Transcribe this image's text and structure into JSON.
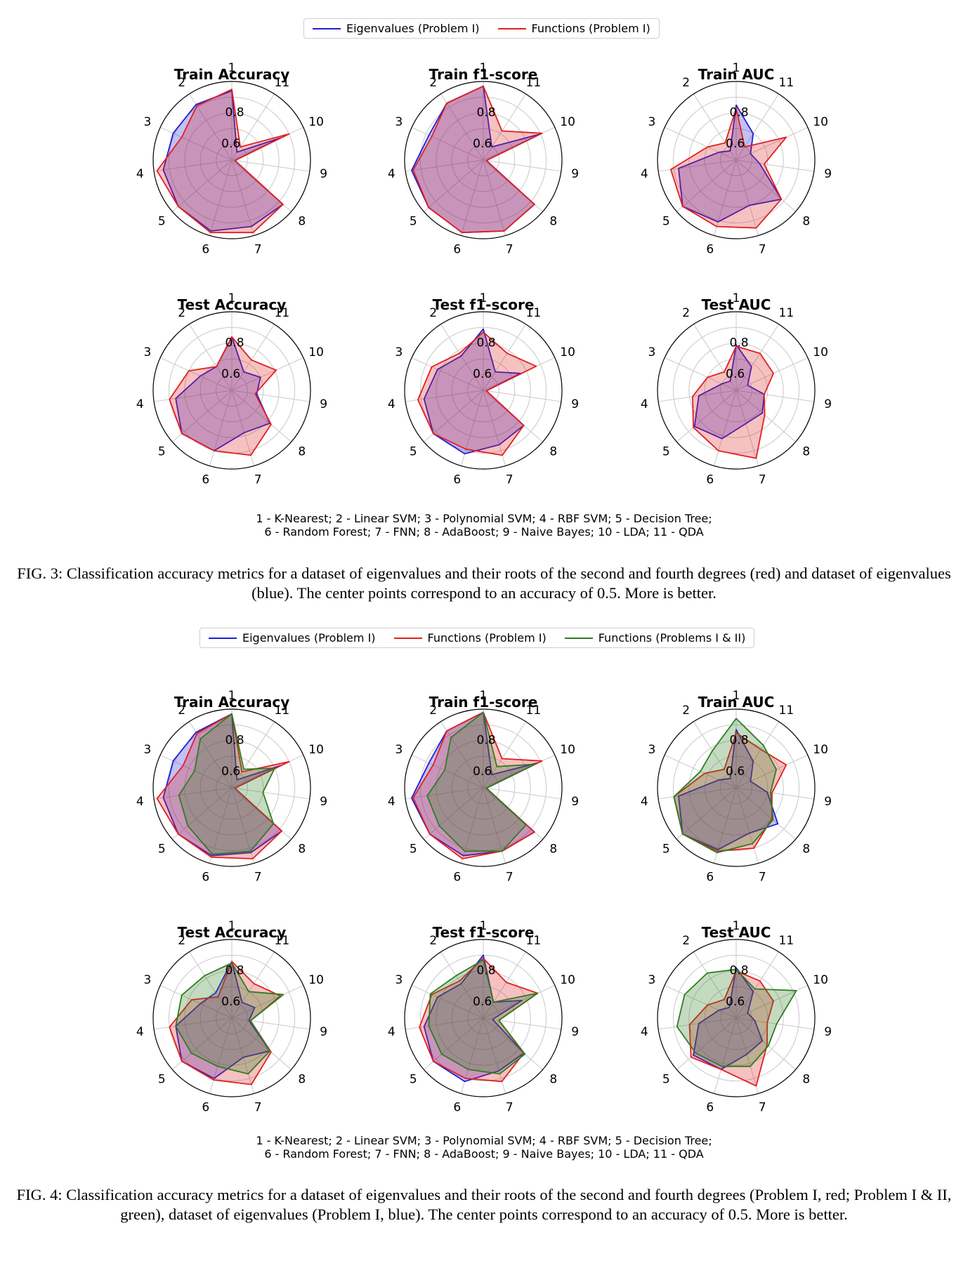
{
  "figures": [
    {
      "legend": [
        {
          "label": "Eigenvalues (Problem I)",
          "color": "#1f1fd6"
        },
        {
          "label": "Functions (Problem I)",
          "color": "#e02020"
        }
      ],
      "abbreviations": [
        "1 - K-Nearest; 2 - Linear SVM; 3 - Polynomial SVM; 4 - RBF SVM; 5 - Decision Tree;",
        "6 - Random Forest; 7 - FNN; 8 - AdaBoost; 9 - Naive Bayes; 10 - LDA; 11 - QDA"
      ],
      "caption": "FIG. 3: Classification accuracy metrics for a dataset of eigenvalues and their roots of the second and fourth degrees (red) and dataset of eigenvalues (blue). The center points correspond to an accuracy of 0.5. More is better."
    },
    {
      "legend": [
        {
          "label": "Eigenvalues (Problem I)",
          "color": "#1f1fd6"
        },
        {
          "label": "Functions (Problem I)",
          "color": "#e02020"
        },
        {
          "label": "Functions (Problems I & II)",
          "color": "#2e7d22"
        }
      ],
      "abbreviations": [
        "1 - K-Nearest; 2 - Linear SVM; 3 - Polynomial SVM; 4 - RBF SVM; 5 - Decision Tree;",
        "6 - Random Forest; 7 - FNN; 8 - AdaBoost; 9 - Naive Bayes; 10 - LDA; 11 - QDA"
      ],
      "caption": "FIG. 4: Classification accuracy metrics for a dataset of eigenvalues and their roots of the second and fourth degrees (Problem I, red; Problem I & II, green), dataset of eigenvalues (Problem I, blue). The center points correspond to an accuracy of 0.5. More is better."
    }
  ],
  "chart_data": [
    {
      "type": "radar",
      "figure": "FIG. 3",
      "title": "Train Accuracy",
      "categories": [
        "1",
        "2",
        "3",
        "4",
        "5",
        "6",
        "7",
        "8",
        "9",
        "10",
        "11"
      ],
      "rlim": [
        0.5,
        1.0
      ],
      "radial_ticks": [
        "0.6",
        "0.8"
      ],
      "series": [
        {
          "name": "Eigenvalues (Problem I)",
          "color": "#1f1fd6",
          "values": [
            0.94,
            0.92,
            0.91,
            0.94,
            0.95,
            0.97,
            0.94,
            0.93,
            0.52,
            0.84,
            0.56
          ]
        },
        {
          "name": "Functions (Problem I)",
          "color": "#e02020",
          "values": [
            0.95,
            0.91,
            0.85,
            0.98,
            0.95,
            0.98,
            0.98,
            0.93,
            0.52,
            0.9,
            0.6
          ]
        }
      ]
    },
    {
      "type": "radar",
      "figure": "FIG. 3",
      "title": "Train f1-score",
      "categories": [
        "1",
        "2",
        "3",
        "4",
        "5",
        "6",
        "7",
        "8",
        "9",
        "10",
        "11"
      ],
      "rlim": [
        0.5,
        1.0
      ],
      "radial_ticks": [
        "0.6",
        "0.8"
      ],
      "series": [
        {
          "name": "Eigenvalues (Problem I)",
          "color": "#1f1fd6",
          "values": [
            0.97,
            0.93,
            0.88,
            0.96,
            0.96,
            0.98,
            0.97,
            0.93,
            0.52,
            0.9,
            0.6
          ]
        },
        {
          "name": "Functions (Problem I)",
          "color": "#e02020",
          "values": [
            0.97,
            0.93,
            0.86,
            0.95,
            0.96,
            0.98,
            0.97,
            0.93,
            0.52,
            0.91,
            0.72
          ]
        }
      ]
    },
    {
      "type": "radar",
      "figure": "FIG. 3",
      "title": "Train AUC",
      "categories": [
        "1",
        "2",
        "3",
        "4",
        "5",
        "6",
        "7",
        "8",
        "9",
        "10",
        "11"
      ],
      "rlim": [
        0.5,
        1.0
      ],
      "radial_ticks": [
        "0.6",
        "0.8"
      ],
      "series": [
        {
          "name": "Eigenvalues (Problem I)",
          "color": "#1f1fd6",
          "values": [
            0.85,
            0.57,
            0.62,
            0.87,
            0.95,
            0.91,
            0.8,
            0.88,
            0.65,
            0.6,
            0.7
          ]
        },
        {
          "name": "Functions (Problem I)",
          "color": "#e02020",
          "values": [
            0.83,
            0.63,
            0.7,
            0.92,
            0.95,
            0.94,
            0.95,
            0.88,
            0.68,
            0.85,
            0.6
          ]
        }
      ]
    },
    {
      "type": "radar",
      "figure": "FIG. 3",
      "title": "Test Accuracy",
      "categories": [
        "1",
        "2",
        "3",
        "4",
        "5",
        "6",
        "7",
        "8",
        "9",
        "10",
        "11"
      ],
      "rlim": [
        0.5,
        1.0
      ],
      "radial_ticks": [
        "0.6",
        "0.8"
      ],
      "series": [
        {
          "name": "Eigenvalues (Problem I)",
          "color": "#1f1fd6",
          "values": [
            0.84,
            0.68,
            0.72,
            0.86,
            0.92,
            0.9,
            0.78,
            0.82,
            0.66,
            0.7,
            0.64
          ]
        },
        {
          "name": "Functions (Problem I)",
          "color": "#e02020",
          "values": [
            0.84,
            0.68,
            0.8,
            0.9,
            0.92,
            0.9,
            0.93,
            0.83,
            0.65,
            0.81,
            0.73
          ]
        }
      ]
    },
    {
      "type": "radar",
      "figure": "FIG. 3",
      "title": "Test f1-score",
      "categories": [
        "1",
        "2",
        "3",
        "4",
        "5",
        "6",
        "7",
        "8",
        "9",
        "10",
        "11"
      ],
      "rlim": [
        0.5,
        1.0
      ],
      "radial_ticks": [
        "0.6",
        "0.8"
      ],
      "series": [
        {
          "name": "Eigenvalues (Problem I)",
          "color": "#1f1fd6",
          "values": [
            0.89,
            0.76,
            0.82,
            0.88,
            0.92,
            0.92,
            0.86,
            0.84,
            0.52,
            0.76,
            0.64
          ]
        },
        {
          "name": "Functions (Problem I)",
          "color": "#e02020",
          "values": [
            0.87,
            0.78,
            0.86,
            0.92,
            0.92,
            0.89,
            0.93,
            0.84,
            0.52,
            0.87,
            0.78
          ]
        }
      ]
    },
    {
      "type": "radar",
      "figure": "FIG. 3",
      "title": "Test AUC",
      "categories": [
        "1",
        "2",
        "3",
        "4",
        "5",
        "6",
        "7",
        "8",
        "9",
        "10",
        "11"
      ],
      "rlim": [
        0.5,
        1.0
      ],
      "radial_ticks": [
        "0.6",
        "0.8"
      ],
      "series": [
        {
          "name": "Eigenvalues (Problem I)",
          "color": "#1f1fd6",
          "values": [
            0.79,
            0.57,
            0.6,
            0.74,
            0.85,
            0.82,
            0.72,
            0.72,
            0.68,
            0.58,
            0.68
          ]
        },
        {
          "name": "Functions (Problem I)",
          "color": "#e02020",
          "values": [
            0.78,
            0.64,
            0.7,
            0.78,
            0.86,
            0.9,
            0.95,
            0.74,
            0.68,
            0.76,
            0.78
          ]
        }
      ]
    },
    {
      "type": "radar",
      "figure": "FIG. 4",
      "title": "Train Accuracy",
      "categories": [
        "1",
        "2",
        "3",
        "4",
        "5",
        "6",
        "7",
        "8",
        "9",
        "10",
        "11"
      ],
      "rlim": [
        0.5,
        1.0
      ],
      "radial_ticks": [
        "0.6",
        "0.8"
      ],
      "series": [
        {
          "name": "Eigenvalues (Problem I)",
          "color": "#1f1fd6",
          "values": [
            0.97,
            0.92,
            0.91,
            0.94,
            0.95,
            0.95,
            0.93,
            0.92,
            0.52,
            0.84,
            0.56
          ]
        },
        {
          "name": "Functions (Problem I)",
          "color": "#e02020",
          "values": [
            0.97,
            0.91,
            0.84,
            0.98,
            0.95,
            0.96,
            0.97,
            0.92,
            0.52,
            0.9,
            0.62
          ]
        },
        {
          "name": "Functions (Problems I & II)",
          "color": "#2e7d22",
          "values": [
            0.97,
            0.87,
            0.76,
            0.84,
            0.87,
            0.94,
            0.92,
            0.85,
            0.7,
            0.8,
            0.64
          ]
        }
      ]
    },
    {
      "type": "radar",
      "figure": "FIG. 4",
      "title": "Train f1-score",
      "categories": [
        "1",
        "2",
        "3",
        "4",
        "5",
        "6",
        "7",
        "8",
        "9",
        "10",
        "11"
      ],
      "rlim": [
        0.5,
        1.0
      ],
      "radial_ticks": [
        "0.6",
        "0.8"
      ],
      "series": [
        {
          "name": "Eigenvalues (Problem I)",
          "color": "#1f1fd6",
          "values": [
            0.98,
            0.93,
            0.88,
            0.96,
            0.95,
            0.95,
            0.92,
            0.93,
            0.52,
            0.88,
            0.6
          ]
        },
        {
          "name": "Functions (Problem I)",
          "color": "#e02020",
          "values": [
            0.98,
            0.93,
            0.85,
            0.95,
            0.95,
            0.97,
            0.92,
            0.93,
            0.52,
            0.91,
            0.72
          ]
        },
        {
          "name": "Functions (Problems I & II)",
          "color": "#2e7d22",
          "values": [
            0.98,
            0.88,
            0.77,
            0.86,
            0.87,
            0.92,
            0.92,
            0.86,
            0.52,
            0.86,
            0.66
          ]
        }
      ]
    },
    {
      "type": "radar",
      "figure": "FIG. 4",
      "title": "Train AUC",
      "categories": [
        "1",
        "2",
        "3",
        "4",
        "5",
        "6",
        "7",
        "8",
        "9",
        "10",
        "11"
      ],
      "rlim": [
        0.5,
        1.0
      ],
      "radial_ticks": [
        "0.6",
        "0.8"
      ],
      "series": [
        {
          "name": "Eigenvalues (Problem I)",
          "color": "#1f1fd6",
          "values": [
            0.87,
            0.57,
            0.62,
            0.87,
            0.95,
            0.91,
            0.8,
            0.85,
            0.7,
            0.6,
            0.7
          ]
        },
        {
          "name": "Functions (Problem I)",
          "color": "#e02020",
          "values": [
            0.85,
            0.64,
            0.72,
            0.9,
            0.95,
            0.92,
            0.9,
            0.8,
            0.73,
            0.85,
            0.79
          ]
        },
        {
          "name": "Functions (Problems I & II)",
          "color": "#2e7d22",
          "values": [
            0.94,
            0.78,
            0.75,
            0.9,
            0.95,
            0.93,
            0.87,
            0.81,
            0.72,
            0.78,
            0.82
          ]
        }
      ]
    },
    {
      "type": "radar",
      "figure": "FIG. 4",
      "title": "Test Accuracy",
      "categories": [
        "1",
        "2",
        "3",
        "4",
        "5",
        "6",
        "7",
        "8",
        "9",
        "10",
        "11"
      ],
      "rlim": [
        0.5,
        1.0
      ],
      "radial_ticks": [
        "0.6",
        "0.8"
      ],
      "series": [
        {
          "name": "Eigenvalues (Problem I)",
          "color": "#1f1fd6",
          "values": [
            0.86,
            0.69,
            0.72,
            0.86,
            0.92,
            0.9,
            0.76,
            0.82,
            0.61,
            0.66,
            0.62
          ]
        },
        {
          "name": "Functions (Problem I)",
          "color": "#e02020",
          "values": [
            0.86,
            0.66,
            0.78,
            0.9,
            0.92,
            0.91,
            0.94,
            0.83,
            0.62,
            0.84,
            0.76
          ]
        },
        {
          "name": "Functions (Problems I & II)",
          "color": "#2e7d22",
          "values": [
            0.85,
            0.82,
            0.85,
            0.86,
            0.84,
            0.82,
            0.87,
            0.82,
            0.62,
            0.86,
            0.7
          ]
        }
      ]
    },
    {
      "type": "radar",
      "figure": "FIG. 4",
      "title": "Test f1-score",
      "categories": [
        "1",
        "2",
        "3",
        "4",
        "5",
        "6",
        "7",
        "8",
        "9",
        "10",
        "11"
      ],
      "rlim": [
        0.5,
        1.0
      ],
      "radial_ticks": [
        "0.6",
        "0.8"
      ],
      "series": [
        {
          "name": "Eigenvalues (Problem I)",
          "color": "#1f1fd6",
          "values": [
            0.9,
            0.76,
            0.82,
            0.88,
            0.92,
            0.92,
            0.85,
            0.84,
            0.56,
            0.77,
            0.62
          ]
        },
        {
          "name": "Functions (Problem I)",
          "color": "#e02020",
          "values": [
            0.88,
            0.78,
            0.86,
            0.91,
            0.92,
            0.9,
            0.92,
            0.84,
            0.6,
            0.88,
            0.77
          ]
        },
        {
          "name": "Functions (Problems I & II)",
          "color": "#2e7d22",
          "values": [
            0.87,
            0.82,
            0.87,
            0.85,
            0.85,
            0.84,
            0.87,
            0.85,
            0.6,
            0.88,
            0.62
          ]
        }
      ]
    },
    {
      "type": "radar",
      "figure": "FIG. 4",
      "title": "Test AUC",
      "categories": [
        "1",
        "2",
        "3",
        "4",
        "5",
        "6",
        "7",
        "8",
        "9",
        "10",
        "11"
      ],
      "rlim": [
        0.5,
        1.0
      ],
      "radial_ticks": [
        "0.6",
        "0.8"
      ],
      "series": [
        {
          "name": "Eigenvalues (Problem I)",
          "color": "#1f1fd6",
          "values": [
            0.82,
            0.58,
            0.62,
            0.74,
            0.86,
            0.84,
            0.74,
            0.72,
            0.62,
            0.58,
            0.7
          ]
        },
        {
          "name": "Functions (Problem I)",
          "color": "#e02020",
          "values": [
            0.8,
            0.64,
            0.7,
            0.8,
            0.88,
            0.84,
            0.95,
            0.76,
            0.7,
            0.76,
            0.78
          ]
        },
        {
          "name": "Functions (Problems I & II)",
          "color": "#2e7d22",
          "values": [
            0.81,
            0.84,
            0.86,
            0.88,
            0.84,
            0.82,
            0.82,
            0.77,
            0.76,
            0.92,
            0.72
          ]
        }
      ]
    }
  ]
}
